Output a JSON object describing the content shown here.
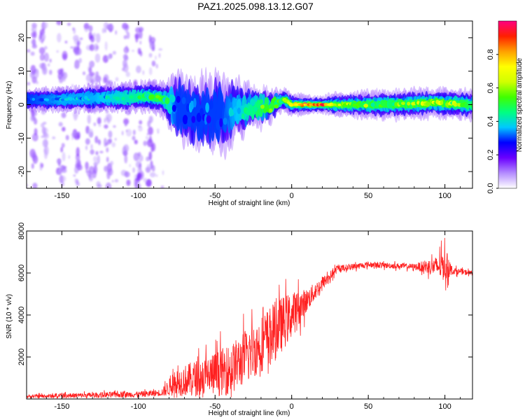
{
  "title": "PAZ1.2025.098.13.12.G07",
  "chart_data": [
    {
      "type": "heatmap",
      "xlabel": "Height of straight line (km)",
      "ylabel": "Frequency (Hz)",
      "xlim": [
        -173,
        118
      ],
      "ylim": [
        -25,
        25
      ],
      "xticks": [
        -150,
        -100,
        -50,
        0,
        50,
        100
      ],
      "yticks": [
        -20,
        -10,
        0,
        10,
        20
      ],
      "colorbar": {
        "label": "Normalized spectral amplitude",
        "range": [
          0,
          1
        ],
        "ticks": [
          0.0,
          0.2,
          0.4,
          0.6,
          0.8
        ],
        "colormap": [
          "#ffffff",
          "#b48cff",
          "#6a00ff",
          "#0000ff",
          "#00c8ff",
          "#00ff80",
          "#40ff00",
          "#d0ff00",
          "#ffff00",
          "#ffa000",
          "#ff2000",
          "#ff0080"
        ]
      },
      "ridge_profile": [
        {
          "x": -170,
          "freq": 1.5,
          "spread": 1.5,
          "amp": 0.3
        },
        {
          "x": -150,
          "freq": 1.5,
          "spread": 1.6,
          "amp": 0.35
        },
        {
          "x": -130,
          "freq": 2.0,
          "spread": 1.8,
          "amp": 0.35
        },
        {
          "x": -110,
          "freq": 2.0,
          "spread": 2.0,
          "amp": 0.4
        },
        {
          "x": -95,
          "freq": 2.5,
          "spread": 2.0,
          "amp": 0.45
        },
        {
          "x": -85,
          "freq": 2.0,
          "spread": 2.2,
          "amp": 0.5
        },
        {
          "x": -75,
          "freq": -1.0,
          "spread": 4.0,
          "amp": 0.3
        },
        {
          "x": -60,
          "freq": -3.0,
          "spread": 4.5,
          "amp": 0.3
        },
        {
          "x": -45,
          "freq": -2.5,
          "spread": 4.5,
          "amp": 0.3
        },
        {
          "x": -30,
          "freq": -1.0,
          "spread": 3.0,
          "amp": 0.4
        },
        {
          "x": -15,
          "freq": -0.5,
          "spread": 2.0,
          "amp": 0.55
        },
        {
          "x": -5,
          "freq": 1.5,
          "spread": 1.5,
          "amp": 0.5
        },
        {
          "x": 0,
          "freq": 0.0,
          "spread": 1.5,
          "amp": 0.75
        },
        {
          "x": 20,
          "freq": 0.0,
          "spread": 1.2,
          "amp": 0.98
        },
        {
          "x": 30,
          "freq": 0.0,
          "spread": 1.6,
          "amp": 0.6
        },
        {
          "x": 60,
          "freq": 0.0,
          "spread": 2.0,
          "amp": 0.5
        },
        {
          "x": 95,
          "freq": 0.5,
          "spread": 2.0,
          "amp": 0.65
        },
        {
          "x": 118,
          "freq": 0.0,
          "spread": 2.0,
          "amp": 0.45
        }
      ],
      "noise_columns_x": [
        -168,
        -162,
        -150,
        -140,
        -132,
        -127,
        -120,
        -108,
        -100,
        -92
      ]
    },
    {
      "type": "line",
      "xlabel": "Height of straight line (km)",
      "ylabel": "SNR (10 * v/v)",
      "xlim": [
        -173,
        118
      ],
      "ylim": [
        0,
        8000
      ],
      "xticks": [
        -150,
        -100,
        -50,
        0,
        50,
        100
      ],
      "yticks": [
        2000,
        4000,
        6000,
        8000
      ],
      "series": [
        {
          "color": "#ff2020",
          "envelope": [
            {
              "x": -173,
              "mean": 120,
              "amp": 150
            },
            {
              "x": -150,
              "mean": 150,
              "amp": 200
            },
            {
              "x": -120,
              "mean": 200,
              "amp": 250
            },
            {
              "x": -100,
              "mean": 220,
              "amp": 250
            },
            {
              "x": -85,
              "mean": 300,
              "amp": 300
            },
            {
              "x": -75,
              "mean": 800,
              "amp": 1200
            },
            {
              "x": -55,
              "mean": 1100,
              "amp": 1800
            },
            {
              "x": -40,
              "mean": 1400,
              "amp": 2200
            },
            {
              "x": -25,
              "mean": 2300,
              "amp": 2400
            },
            {
              "x": -10,
              "mean": 3300,
              "amp": 2600
            },
            {
              "x": 0,
              "mean": 4000,
              "amp": 2000
            },
            {
              "x": 10,
              "mean": 4700,
              "amp": 1000
            },
            {
              "x": 20,
              "mean": 5500,
              "amp": 600
            },
            {
              "x": 30,
              "mean": 6200,
              "amp": 300
            },
            {
              "x": 50,
              "mean": 6400,
              "amp": 250
            },
            {
              "x": 80,
              "mean": 6300,
              "amp": 250
            },
            {
              "x": 95,
              "mean": 6300,
              "amp": 900
            },
            {
              "x": 100,
              "mean": 6400,
              "amp": 1500
            },
            {
              "x": 105,
              "mean": 6100,
              "amp": 300
            },
            {
              "x": 118,
              "mean": 6000,
              "amp": 200
            }
          ]
        }
      ]
    }
  ]
}
